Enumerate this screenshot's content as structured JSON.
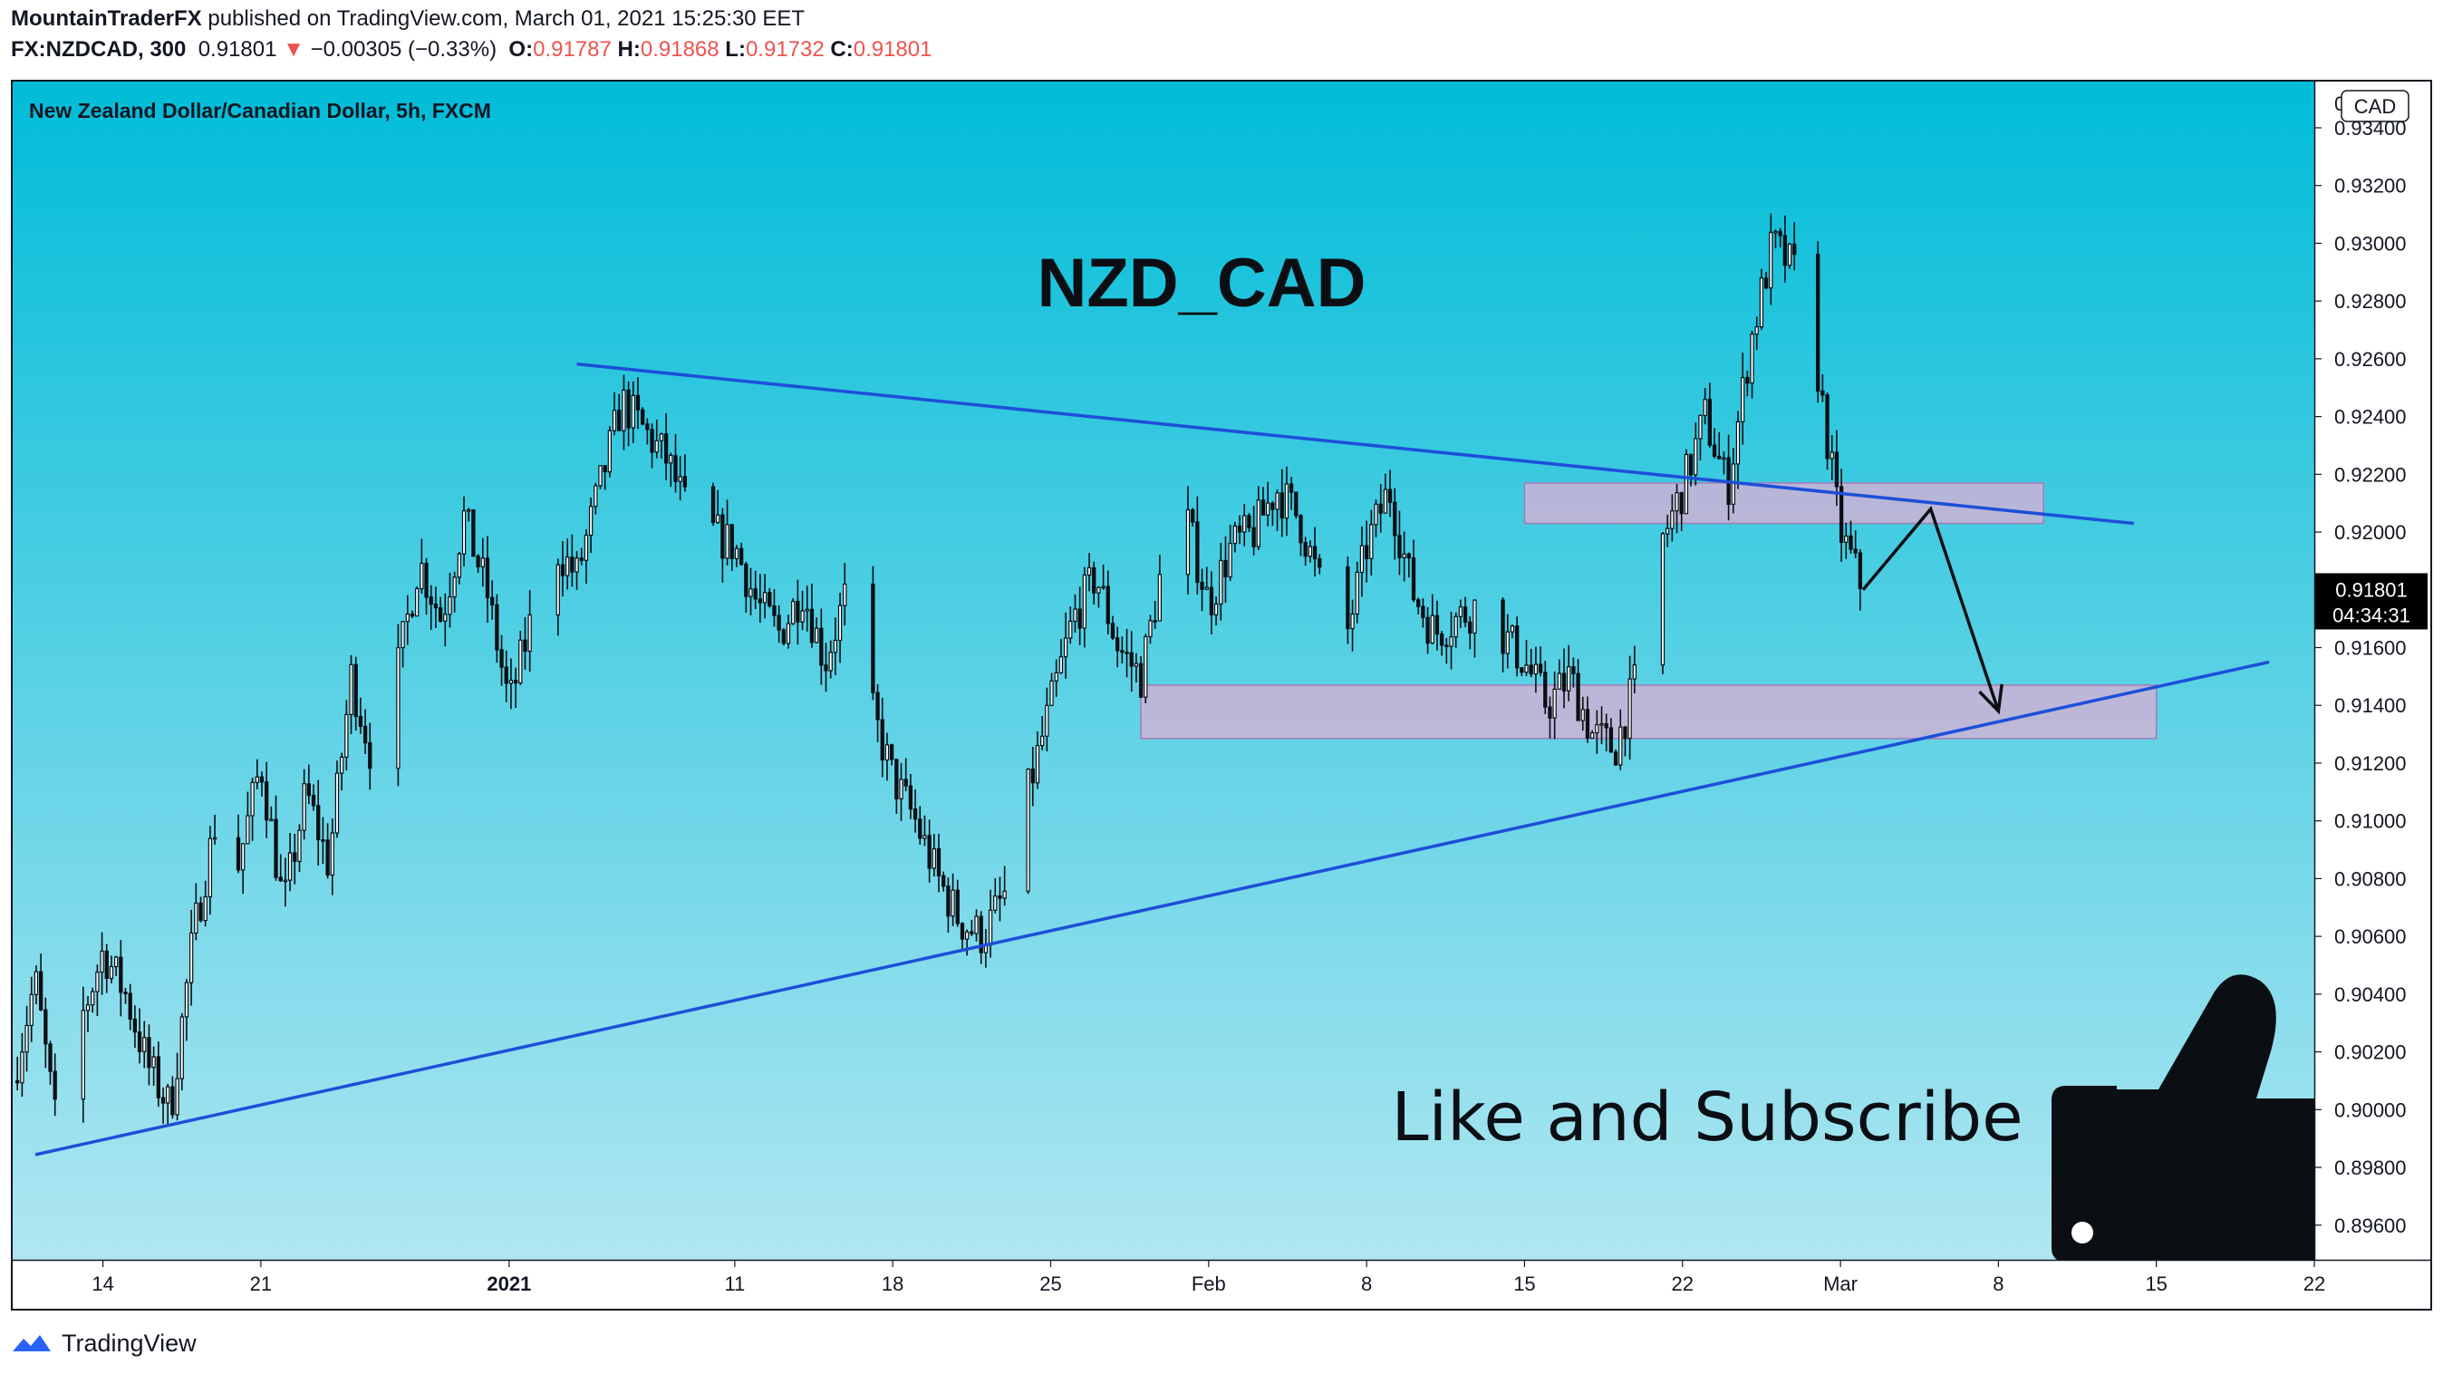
{
  "header": {
    "author": "MountainTraderFX",
    "published_text": "published on TradingView.com, March 01, 2021 15:25:30 EET",
    "symbol": "FX:NZDCAD, 300",
    "last": "0.91801",
    "change_arrow": "▼",
    "change": "−0.00305 (−0.33%)",
    "o_label": "O:",
    "o": "0.91787",
    "h_label": "H:",
    "h": "0.91868",
    "l_label": "L:",
    "l": "0.91732",
    "c_label": "C:",
    "c": "0.91801"
  },
  "chart": {
    "legend": "New Zealand Dollar/Canadian Dollar, 5h, FXCM",
    "title": "NZD_CAD",
    "cta": "Like and Subscribe",
    "currency_badge": "CAD",
    "price_label": "0.91801",
    "countdown": "04:34:31",
    "top_cut_tick": "0"
  },
  "footer": {
    "brand": "TradingView"
  },
  "colors": {
    "bg_top": "#00bcd8",
    "bg_bottom": "#b0e6f1",
    "candle": "#0b0f14",
    "trendline": "#1d4fd8",
    "zone_fill": "#c9b3d6",
    "zone_stroke": "#a47ab8",
    "price_tag": "#000000",
    "text": "#131722",
    "down": "#ef5350"
  },
  "chart_data": {
    "type": "candlestick",
    "y_axis": {
      "range": [
        0.8948,
        0.9356
      ],
      "ticks": [
        "0.93400",
        "0.93200",
        "0.93000",
        "0.92800",
        "0.92600",
        "0.92400",
        "0.92200",
        "0.92000",
        "0.91800",
        "0.91600",
        "0.91400",
        "0.91200",
        "0.91000",
        "0.90800",
        "0.90600",
        "0.90400",
        "0.90200",
        "0.90000",
        "0.89800",
        "0.89600"
      ]
    },
    "x_axis": {
      "range": [
        "2020-12-10",
        "2021-03-22"
      ],
      "ticks": [
        {
          "date": "2020-12-14",
          "label": "14"
        },
        {
          "date": "2020-12-21",
          "label": "21"
        },
        {
          "date": "2021-01-01",
          "label": "2021",
          "bold": true
        },
        {
          "date": "2021-01-11",
          "label": "11"
        },
        {
          "date": "2021-01-18",
          "label": "18"
        },
        {
          "date": "2021-01-25",
          "label": "25"
        },
        {
          "date": "2021-02-01",
          "label": "Feb"
        },
        {
          "date": "2021-02-08",
          "label": "8"
        },
        {
          "date": "2021-02-15",
          "label": "15"
        },
        {
          "date": "2021-02-22",
          "label": "22"
        },
        {
          "date": "2021-03-01",
          "label": "Mar"
        },
        {
          "date": "2021-03-08",
          "label": "8"
        },
        {
          "date": "2021-03-15",
          "label": "15"
        },
        {
          "date": "2021-03-22",
          "label": "22"
        }
      ]
    },
    "price_path": [
      [
        "2020-12-10",
        0.901
      ],
      [
        "2020-12-11",
        0.9045
      ],
      [
        "2020-12-12",
        0.899
      ],
      [
        "2020-12-13",
        0.903
      ],
      [
        "2020-12-14",
        0.9055
      ],
      [
        "2020-12-15",
        0.904
      ],
      [
        "2020-12-16",
        0.9015
      ],
      [
        "2020-12-17",
        0.9
      ],
      [
        "2020-12-18",
        0.906
      ],
      [
        "2020-12-19",
        0.91
      ],
      [
        "2020-12-20",
        0.9085
      ],
      [
        "2020-12-21",
        0.912
      ],
      [
        "2020-12-22",
        0.907
      ],
      [
        "2020-12-23",
        0.911
      ],
      [
        "2020-12-24",
        0.9085
      ],
      [
        "2020-12-25",
        0.915
      ],
      [
        "2020-12-26",
        0.912
      ],
      [
        "2020-12-27",
        0.915
      ],
      [
        "2020-12-28",
        0.919
      ],
      [
        "2020-12-29",
        0.917
      ],
      [
        "2020-12-30",
        0.9205
      ],
      [
        "2020-12-31",
        0.918
      ],
      [
        "2021-01-01",
        0.914
      ],
      [
        "2021-01-02",
        0.917
      ],
      [
        "2021-01-03",
        0.9195
      ],
      [
        "2021-01-04",
        0.9185
      ],
      [
        "2021-01-05",
        0.9215
      ],
      [
        "2021-01-06",
        0.9245
      ],
      [
        "2021-01-07",
        0.9235
      ],
      [
        "2021-01-08",
        0.9225
      ],
      [
        "2021-01-09",
        0.9205
      ],
      [
        "2021-01-10",
        0.92
      ],
      [
        "2021-01-11",
        0.9195
      ],
      [
        "2021-01-12",
        0.9175
      ],
      [
        "2021-01-13",
        0.9165
      ],
      [
        "2021-01-14",
        0.918
      ],
      [
        "2021-01-15",
        0.9155
      ],
      [
        "2021-01-16",
        0.918
      ],
      [
        "2021-01-17",
        0.914
      ],
      [
        "2021-01-18",
        0.9115
      ],
      [
        "2021-01-19",
        0.91
      ],
      [
        "2021-01-20",
        0.908
      ],
      [
        "2021-01-21",
        0.9065
      ],
      [
        "2021-01-22",
        0.906
      ],
      [
        "2021-01-23",
        0.9075
      ],
      [
        "2021-01-24",
        0.911
      ],
      [
        "2021-01-25",
        0.914
      ],
      [
        "2021-01-26",
        0.917
      ],
      [
        "2021-01-27",
        0.9185
      ],
      [
        "2021-01-28",
        0.916
      ],
      [
        "2021-01-29",
        0.915
      ],
      [
        "2021-01-30",
        0.919
      ],
      [
        "2021-01-31",
        0.9205
      ],
      [
        "2021-02-01",
        0.9175
      ],
      [
        "2021-02-02",
        0.9195
      ],
      [
        "2021-02-03",
        0.92
      ],
      [
        "2021-02-04",
        0.9215
      ],
      [
        "2021-02-05",
        0.9205
      ],
      [
        "2021-02-06",
        0.918
      ],
      [
        "2021-02-07",
        0.916
      ],
      [
        "2021-02-08",
        0.9195
      ],
      [
        "2021-02-09",
        0.9215
      ],
      [
        "2021-02-10",
        0.918
      ],
      [
        "2021-02-11",
        0.9165
      ],
      [
        "2021-02-12",
        0.917
      ],
      [
        "2021-02-13",
        0.9175
      ],
      [
        "2021-02-14",
        0.9165
      ],
      [
        "2021-02-15",
        0.9155
      ],
      [
        "2021-02-16",
        0.914
      ],
      [
        "2021-02-17",
        0.915
      ],
      [
        "2021-02-18",
        0.913
      ],
      [
        "2021-02-19",
        0.9125
      ],
      [
        "2021-02-20",
        0.915
      ],
      [
        "2021-02-21",
        0.9195
      ],
      [
        "2021-02-22",
        0.9215
      ],
      [
        "2021-02-23",
        0.924
      ],
      [
        "2021-02-24",
        0.9215
      ],
      [
        "2021-02-25",
        0.9265
      ],
      [
        "2021-02-26",
        0.93
      ],
      [
        "2021-02-27",
        0.929
      ],
      [
        "2021-02-28",
        0.9255
      ],
      [
        "2021-03-01",
        0.92
      ],
      [
        "2021-03-02",
        0.918
      ]
    ],
    "drawings": {
      "upper_trendline": [
        [
          "2021-01-04",
          0.92582
        ],
        [
          "2021-03-14",
          0.9203
        ]
      ],
      "lower_trendline": [
        [
          "2020-12-11",
          0.89844
        ],
        [
          "2021-03-20",
          0.9155
        ]
      ],
      "upper_zone": {
        "from": "2021-02-15",
        "to": "2021-03-10",
        "top": 0.9217,
        "bottom": 0.9203
      },
      "lower_zone": {
        "from": "2021-01-29",
        "to": "2021-03-15",
        "top": 0.9147,
        "bottom": 0.91285
      },
      "projection_path": [
        [
          "2021-03-02",
          0.918
        ],
        [
          "2021-03-05",
          0.9208
        ],
        [
          "2021-03-08",
          0.9138
        ]
      ]
    }
  }
}
